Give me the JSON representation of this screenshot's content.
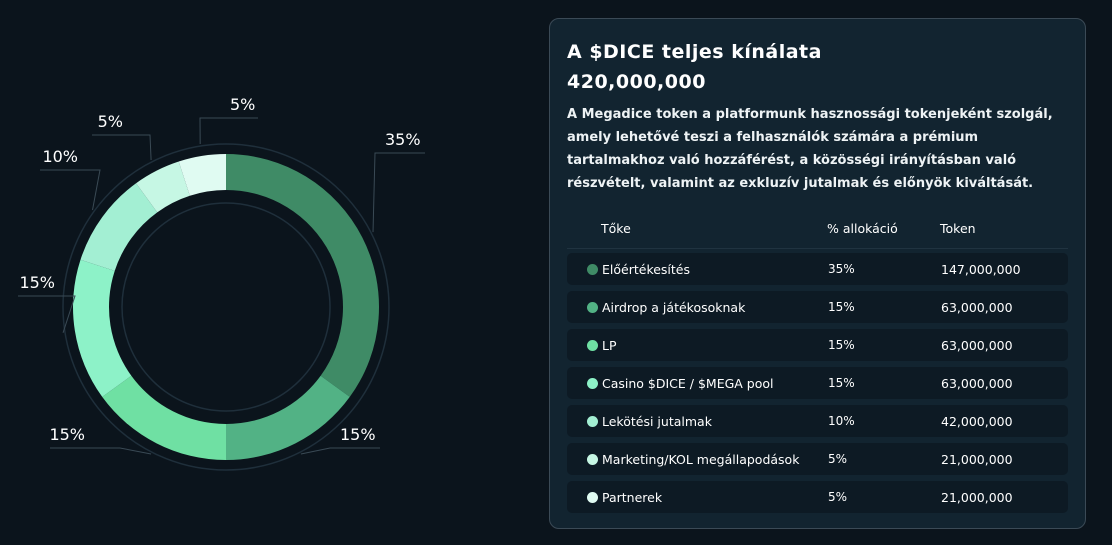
{
  "panel": {
    "title": "A $DICE teljes kínálata",
    "supply": "420,000,000",
    "description": "A Megadice token a platformunk hasznossági tokenjeként szolgál, amely lehetővé teszi a felhasználók számára a prémium tartalmakhoz való hozzáférést, a közösségi irányításban való részvételt, valamint az exkluzív jutalmak és előnyök kiváltását.",
    "headers": {
      "category": "Tőke",
      "allocation": "% allokáció",
      "token": "Token"
    },
    "rows": [
      {
        "label": "Előértékesítés",
        "pct": "35%",
        "tokens": "147,000,000",
        "color": "#3f8b66"
      },
      {
        "label": "Airdrop a játékosoknak",
        "pct": "15%",
        "tokens": "63,000,000",
        "color": "#52b285"
      },
      {
        "label": "LP",
        "pct": "15%",
        "tokens": "63,000,000",
        "color": "#6fe0a3"
      },
      {
        "label": "Casino $DICE / $MEGA pool",
        "pct": "15%",
        "tokens": "63,000,000",
        "color": "#8df2c8"
      },
      {
        "label": "Lekötési jutalmak",
        "pct": "10%",
        "tokens": "42,000,000",
        "color": "#a3efd3"
      },
      {
        "label": "Marketing/KOL megállapodások",
        "pct": "5%",
        "tokens": "21,000,000",
        "color": "#c6f7e4"
      },
      {
        "label": "Partnerek",
        "pct": "5%",
        "tokens": "21,000,000",
        "color": "#e0fbf2"
      }
    ]
  },
  "chart_data": {
    "type": "pie",
    "categories": [
      "Előértékesítés",
      "Airdrop a játékosoknak",
      "LP",
      "Casino $DICE / $MEGA pool",
      "Lekötési jutalmak",
      "Marketing/KOL megállapodások",
      "Partnerek"
    ],
    "values": [
      35,
      15,
      15,
      15,
      10,
      5,
      5
    ],
    "labels": [
      "35%",
      "15%",
      "15%",
      "15%",
      "10%",
      "5%",
      "5%"
    ],
    "colors": [
      "#3f8b66",
      "#52b285",
      "#6fe0a3",
      "#8df2c8",
      "#a3efd3",
      "#c6f7e4",
      "#e0fbf2"
    ],
    "donut": true
  }
}
